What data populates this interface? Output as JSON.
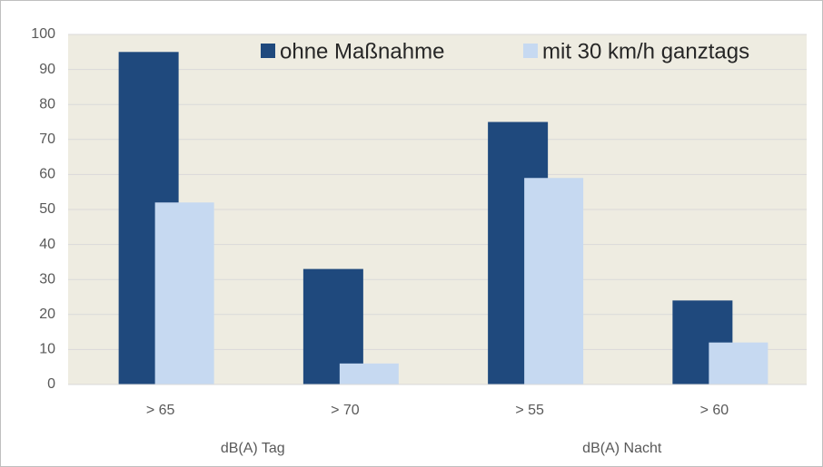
{
  "chart_data": {
    "type": "bar",
    "categories": [
      "> 65",
      "> 70",
      "> 55",
      "> 60"
    ],
    "groups": [
      "dB(A) Tag",
      "dB(A) Nacht"
    ],
    "series": [
      {
        "name": "ohne Maßnahme",
        "color": "#1f497d",
        "values": [
          95,
          33,
          75,
          24
        ]
      },
      {
        "name": "mit 30 km/h ganztags",
        "color": "#c6d9f1",
        "values": [
          52,
          6,
          59,
          12
        ]
      }
    ],
    "ylim": [
      0,
      100
    ],
    "yticks": [
      0,
      10,
      20,
      30,
      40,
      50,
      60,
      70,
      80,
      90,
      100
    ],
    "grid": true,
    "legend": "top",
    "plot_background": "#eeece1"
  }
}
